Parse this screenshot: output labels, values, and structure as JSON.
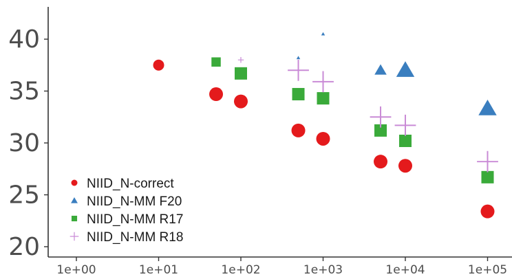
{
  "chart_data": {
    "type": "scatter",
    "title": "",
    "xlabel": "",
    "ylabel": "",
    "x_scale": "log10",
    "xlim": [
      1,
      100000
    ],
    "ylim": [
      19,
      43
    ],
    "x_ticks": [
      {
        "value": 1,
        "label": "1e+00"
      },
      {
        "value": 10,
        "label": "1e+01"
      },
      {
        "value": 100,
        "label": "1e+02"
      },
      {
        "value": 1000,
        "label": "1e+03"
      },
      {
        "value": 10000,
        "label": "1e+04"
      },
      {
        "value": 100000,
        "label": "1e+05"
      }
    ],
    "y_ticks": [
      {
        "value": 20,
        "label": "20"
      },
      {
        "value": 25,
        "label": "25"
      },
      {
        "value": 30,
        "label": "30"
      },
      {
        "value": 35,
        "label": "35"
      },
      {
        "value": 40,
        "label": "40"
      }
    ],
    "grid": false,
    "legend_position": "bottom-left",
    "series": [
      {
        "name": "NIID_N-correct",
        "shape": "circle",
        "color": "#e41a1c",
        "points": [
          {
            "x": 10,
            "y": 37.5,
            "size": 0.8
          },
          {
            "x": 50,
            "y": 34.7,
            "size": 1.0
          },
          {
            "x": 100,
            "y": 34.0,
            "size": 1.0
          },
          {
            "x": 500,
            "y": 31.2,
            "size": 1.0
          },
          {
            "x": 1000,
            "y": 30.4,
            "size": 1.0
          },
          {
            "x": 5000,
            "y": 28.2,
            "size": 1.0
          },
          {
            "x": 10000,
            "y": 27.8,
            "size": 1.0
          },
          {
            "x": 100000,
            "y": 23.4,
            "size": 1.0
          }
        ]
      },
      {
        "name": "NIID_N-MM F20",
        "shape": "triangle",
        "color": "#3a7ebf",
        "points": [
          {
            "x": 500,
            "y": 38.2,
            "size": 0.25
          },
          {
            "x": 1000,
            "y": 40.5,
            "size": 0.25
          },
          {
            "x": 5000,
            "y": 37.0,
            "size": 0.8
          },
          {
            "x": 10000,
            "y": 37.0,
            "size": 1.2
          },
          {
            "x": 100000,
            "y": 33.3,
            "size": 1.2
          }
        ]
      },
      {
        "name": "NIID_N-MM R17",
        "shape": "square",
        "color": "#3aaa3a",
        "points": [
          {
            "x": 50,
            "y": 37.8,
            "size": 0.75
          },
          {
            "x": 100,
            "y": 36.7,
            "size": 1.0
          },
          {
            "x": 500,
            "y": 34.7,
            "size": 1.0
          },
          {
            "x": 1000,
            "y": 34.3,
            "size": 1.0
          },
          {
            "x": 5000,
            "y": 31.2,
            "size": 1.0
          },
          {
            "x": 10000,
            "y": 30.2,
            "size": 1.0
          },
          {
            "x": 100000,
            "y": 26.7,
            "size": 1.0
          }
        ]
      },
      {
        "name": "NIID_N-MM R18",
        "shape": "plus",
        "color": "#c98ad6",
        "points": [
          {
            "x": 100,
            "y": 38.0,
            "size": 0.3
          },
          {
            "x": 500,
            "y": 37.0,
            "size": 1.1
          },
          {
            "x": 1000,
            "y": 35.9,
            "size": 1.1
          },
          {
            "x": 5000,
            "y": 32.5,
            "size": 1.1
          },
          {
            "x": 10000,
            "y": 31.7,
            "size": 1.1
          },
          {
            "x": 100000,
            "y": 28.2,
            "size": 1.1
          }
        ]
      }
    ]
  }
}
